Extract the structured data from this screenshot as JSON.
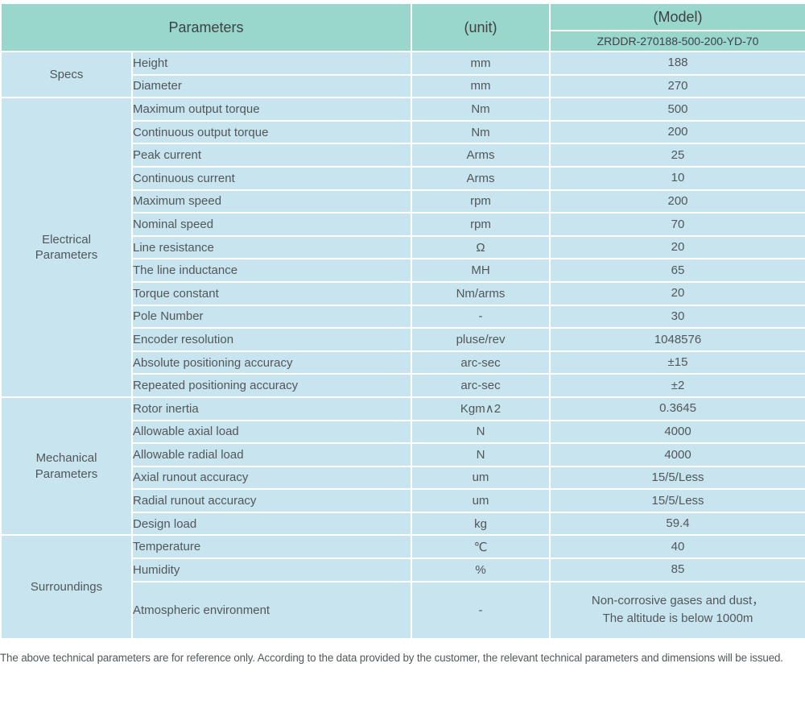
{
  "header": {
    "parameters_label": "Parameters",
    "unit_label": "(unit)",
    "model_label": "(Model)",
    "model_number": "ZRDDR-270188-500-200-YD-70"
  },
  "groups": [
    {
      "name": "Specs",
      "rows": [
        {
          "param": "Height",
          "unit": "mm",
          "value": "188"
        },
        {
          "param": "Diameter",
          "unit": "mm",
          "value": "270"
        }
      ]
    },
    {
      "name": "Electrical\nParameters",
      "rows": [
        {
          "param": "Maximum output torque",
          "unit": "Nm",
          "value": "500"
        },
        {
          "param": "Continuous output torque",
          "unit": "Nm",
          "value": "200"
        },
        {
          "param": "Peak current",
          "unit": "Arms",
          "value": "25"
        },
        {
          "param": "Continuous current",
          "unit": "Arms",
          "value": "10"
        },
        {
          "param": "Maximum speed",
          "unit": "rpm",
          "value": "200"
        },
        {
          "param": "Nominal speed",
          "unit": "rpm",
          "value": "70"
        },
        {
          "param": "Line resistance",
          "unit": "Ω",
          "value": "20"
        },
        {
          "param": "The line inductance",
          "unit": "MH",
          "value": "65"
        },
        {
          "param": "Torque constant",
          "unit": "Nm/arms",
          "value": "20"
        },
        {
          "param": "Pole Number",
          "unit": "-",
          "value": "30"
        },
        {
          "param": "Encoder resolution",
          "unit": "pluse/rev",
          "value": "1048576"
        },
        {
          "param": "Absolute positioning accuracy",
          "unit": "arc-sec",
          "value": "±15"
        },
        {
          "param": "Repeated positioning accuracy",
          "unit": "arc-sec",
          "value": "±2"
        }
      ]
    },
    {
      "name": "Mechanical\nParameters",
      "rows": [
        {
          "param": "Rotor inertia",
          "unit": "Kgm∧2",
          "value": "0.3645"
        },
        {
          "param": "Allowable axial load",
          "unit": "N",
          "value": "4000"
        },
        {
          "param": "Allowable radial load",
          "unit": "N",
          "value": "4000"
        },
        {
          "param": "Axial runout accuracy",
          "unit": "um",
          "value": "15/5/Less"
        },
        {
          "param": "Radial runout accuracy",
          "unit": "um",
          "value": "15/5/Less"
        },
        {
          "param": "Design load",
          "unit": "kg",
          "value": "59.4"
        }
      ]
    },
    {
      "name": "Surroundings",
      "rows": [
        {
          "param": "Temperature",
          "unit": "℃",
          "value": "40"
        },
        {
          "param": "Humidity",
          "unit": "%",
          "value": "85"
        },
        {
          "param": "Atmospheric environment",
          "unit": "-",
          "value": "Non-corrosive gases and dust，\nThe altitude is below 1000m",
          "tall": true
        }
      ]
    }
  ],
  "footer": {
    "note": "The above technical parameters are for reference only. According to the data provided by the customer, the relevant technical parameters and dimensions will be issued."
  },
  "colors": {
    "header_bg": "#99d6cc",
    "cell_bg": "#c8e5ef",
    "header_text": "#3d4244",
    "body_text": "#51575a"
  }
}
